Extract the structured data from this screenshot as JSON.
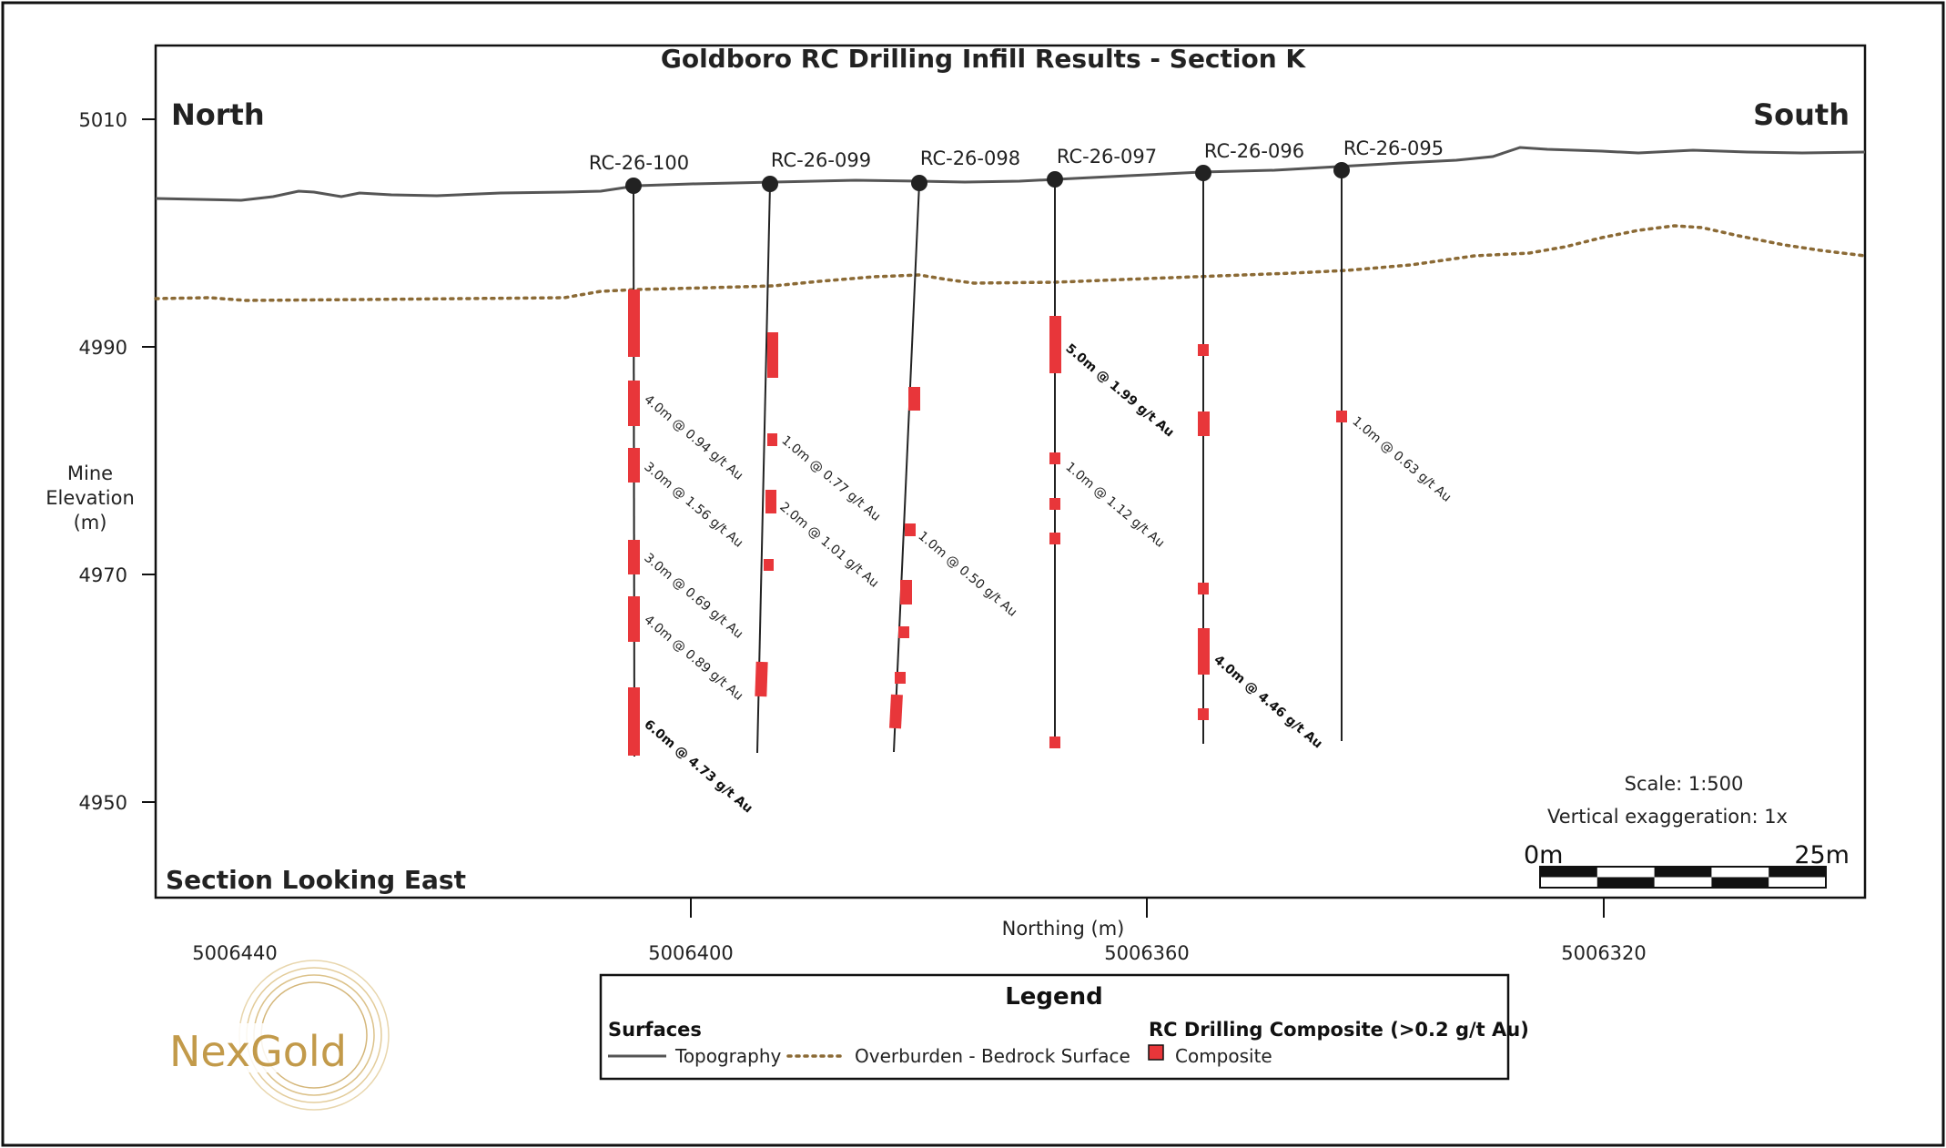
{
  "title": "Goldboro RC Drilling Infill Results - Section K",
  "labels": {
    "north": "North",
    "south": "South",
    "section_view": "Section Looking East",
    "y_axis_title_lines": [
      "Mine",
      "Elevation",
      "(m)"
    ],
    "x_axis_title": "Northing (m)",
    "scale": "Scale: 1:500",
    "vertical_exaggeration": "Vertical exaggeration: 1x",
    "scalebar_start": "0m",
    "scalebar_end": "25m"
  },
  "y_ticks": [
    "5010",
    "4990",
    "4970",
    "4950"
  ],
  "x_ticks": [
    "5006440",
    "5006400",
    "5006360",
    "5006320"
  ],
  "drillholes": [
    {
      "id": "RC-26-100",
      "intervals": [
        {
          "text": "4.0m @ 0.94 g/t Au",
          "bold": false
        },
        {
          "text": "3.0m @ 1.56 g/t Au",
          "bold": false
        },
        {
          "text": "3.0m @ 0.69 g/t Au",
          "bold": false
        },
        {
          "text": "4.0m @ 0.89 g/t Au",
          "bold": false
        },
        {
          "text": "6.0m @ 4.73 g/t Au",
          "bold": true
        }
      ]
    },
    {
      "id": "RC-26-099",
      "intervals": [
        {
          "text": "1.0m @ 0.77 g/t Au",
          "bold": false
        },
        {
          "text": "2.0m @ 1.01 g/t Au",
          "bold": false
        }
      ]
    },
    {
      "id": "RC-26-098",
      "intervals": [
        {
          "text": "1.0m @ 0.50 g/t Au",
          "bold": false
        }
      ]
    },
    {
      "id": "RC-26-097",
      "intervals": [
        {
          "text": "5.0m @ 1.99 g/t Au",
          "bold": true
        },
        {
          "text": "1.0m @ 1.12 g/t Au",
          "bold": false
        }
      ]
    },
    {
      "id": "RC-26-096",
      "intervals": [
        {
          "text": "4.0m @ 4.46 g/t Au",
          "bold": true
        }
      ]
    },
    {
      "id": "RC-26-095",
      "intervals": [
        {
          "text": "1.0m @ 0.63 g/t Au",
          "bold": false
        }
      ]
    }
  ],
  "legend": {
    "title": "Legend",
    "surfaces_heading": "Surfaces",
    "topography": "Topography",
    "overburden": "Overburden - Bedrock Surface",
    "composite_heading": "RC Drilling Composite (>0.2 g/t Au)",
    "composite": "Composite"
  },
  "logo_text": "NexGold",
  "colors": {
    "composite": "#e8363a",
    "topography": "#555555",
    "overburden": "#8b6a35",
    "logo": "#c29a4a"
  }
}
